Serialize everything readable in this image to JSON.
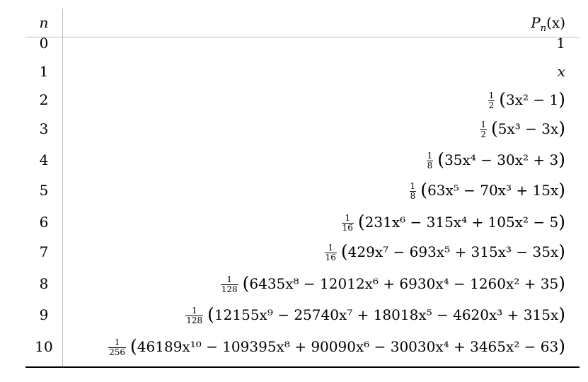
{
  "header": {
    "n_label": "n",
    "p_name": "P",
    "p_sub": "n",
    "p_arg": "(x)"
  },
  "rows": [
    {
      "n": "0",
      "poly": "1"
    },
    {
      "n": "1",
      "poly": "x"
    },
    {
      "n": "2",
      "coef": {
        "num": "1",
        "den": "2"
      },
      "poly": "3x² − 1"
    },
    {
      "n": "3",
      "coef": {
        "num": "1",
        "den": "2"
      },
      "poly": "5x³ − 3x"
    },
    {
      "n": "4",
      "coef": {
        "num": "1",
        "den": "8"
      },
      "poly": "35x⁴ − 30x² + 3"
    },
    {
      "n": "5",
      "coef": {
        "num": "1",
        "den": "8"
      },
      "poly": "63x⁵ − 70x³ + 15x"
    },
    {
      "n": "6",
      "coef": {
        "num": "1",
        "den": "16"
      },
      "poly": "231x⁶ − 315x⁴ + 105x² − 5"
    },
    {
      "n": "7",
      "coef": {
        "num": "1",
        "den": "16"
      },
      "poly": "429x⁷ − 693x⁵ + 315x³ − 35x"
    },
    {
      "n": "8",
      "coef": {
        "num": "1",
        "den": "128"
      },
      "poly": "6435x⁸ − 12012x⁶ + 6930x⁴ − 1260x² + 35"
    },
    {
      "n": "9",
      "coef": {
        "num": "1",
        "den": "128"
      },
      "poly": "12155x⁹ − 25740x⁷ + 18018x⁵ − 4620x³ + 315x"
    },
    {
      "n": "10",
      "coef": {
        "num": "1",
        "den": "256"
      },
      "poly": "46189x¹⁰ − 109395x⁸ + 90090x⁶ − 30030x⁴ + 3465x² − 63"
    }
  ]
}
